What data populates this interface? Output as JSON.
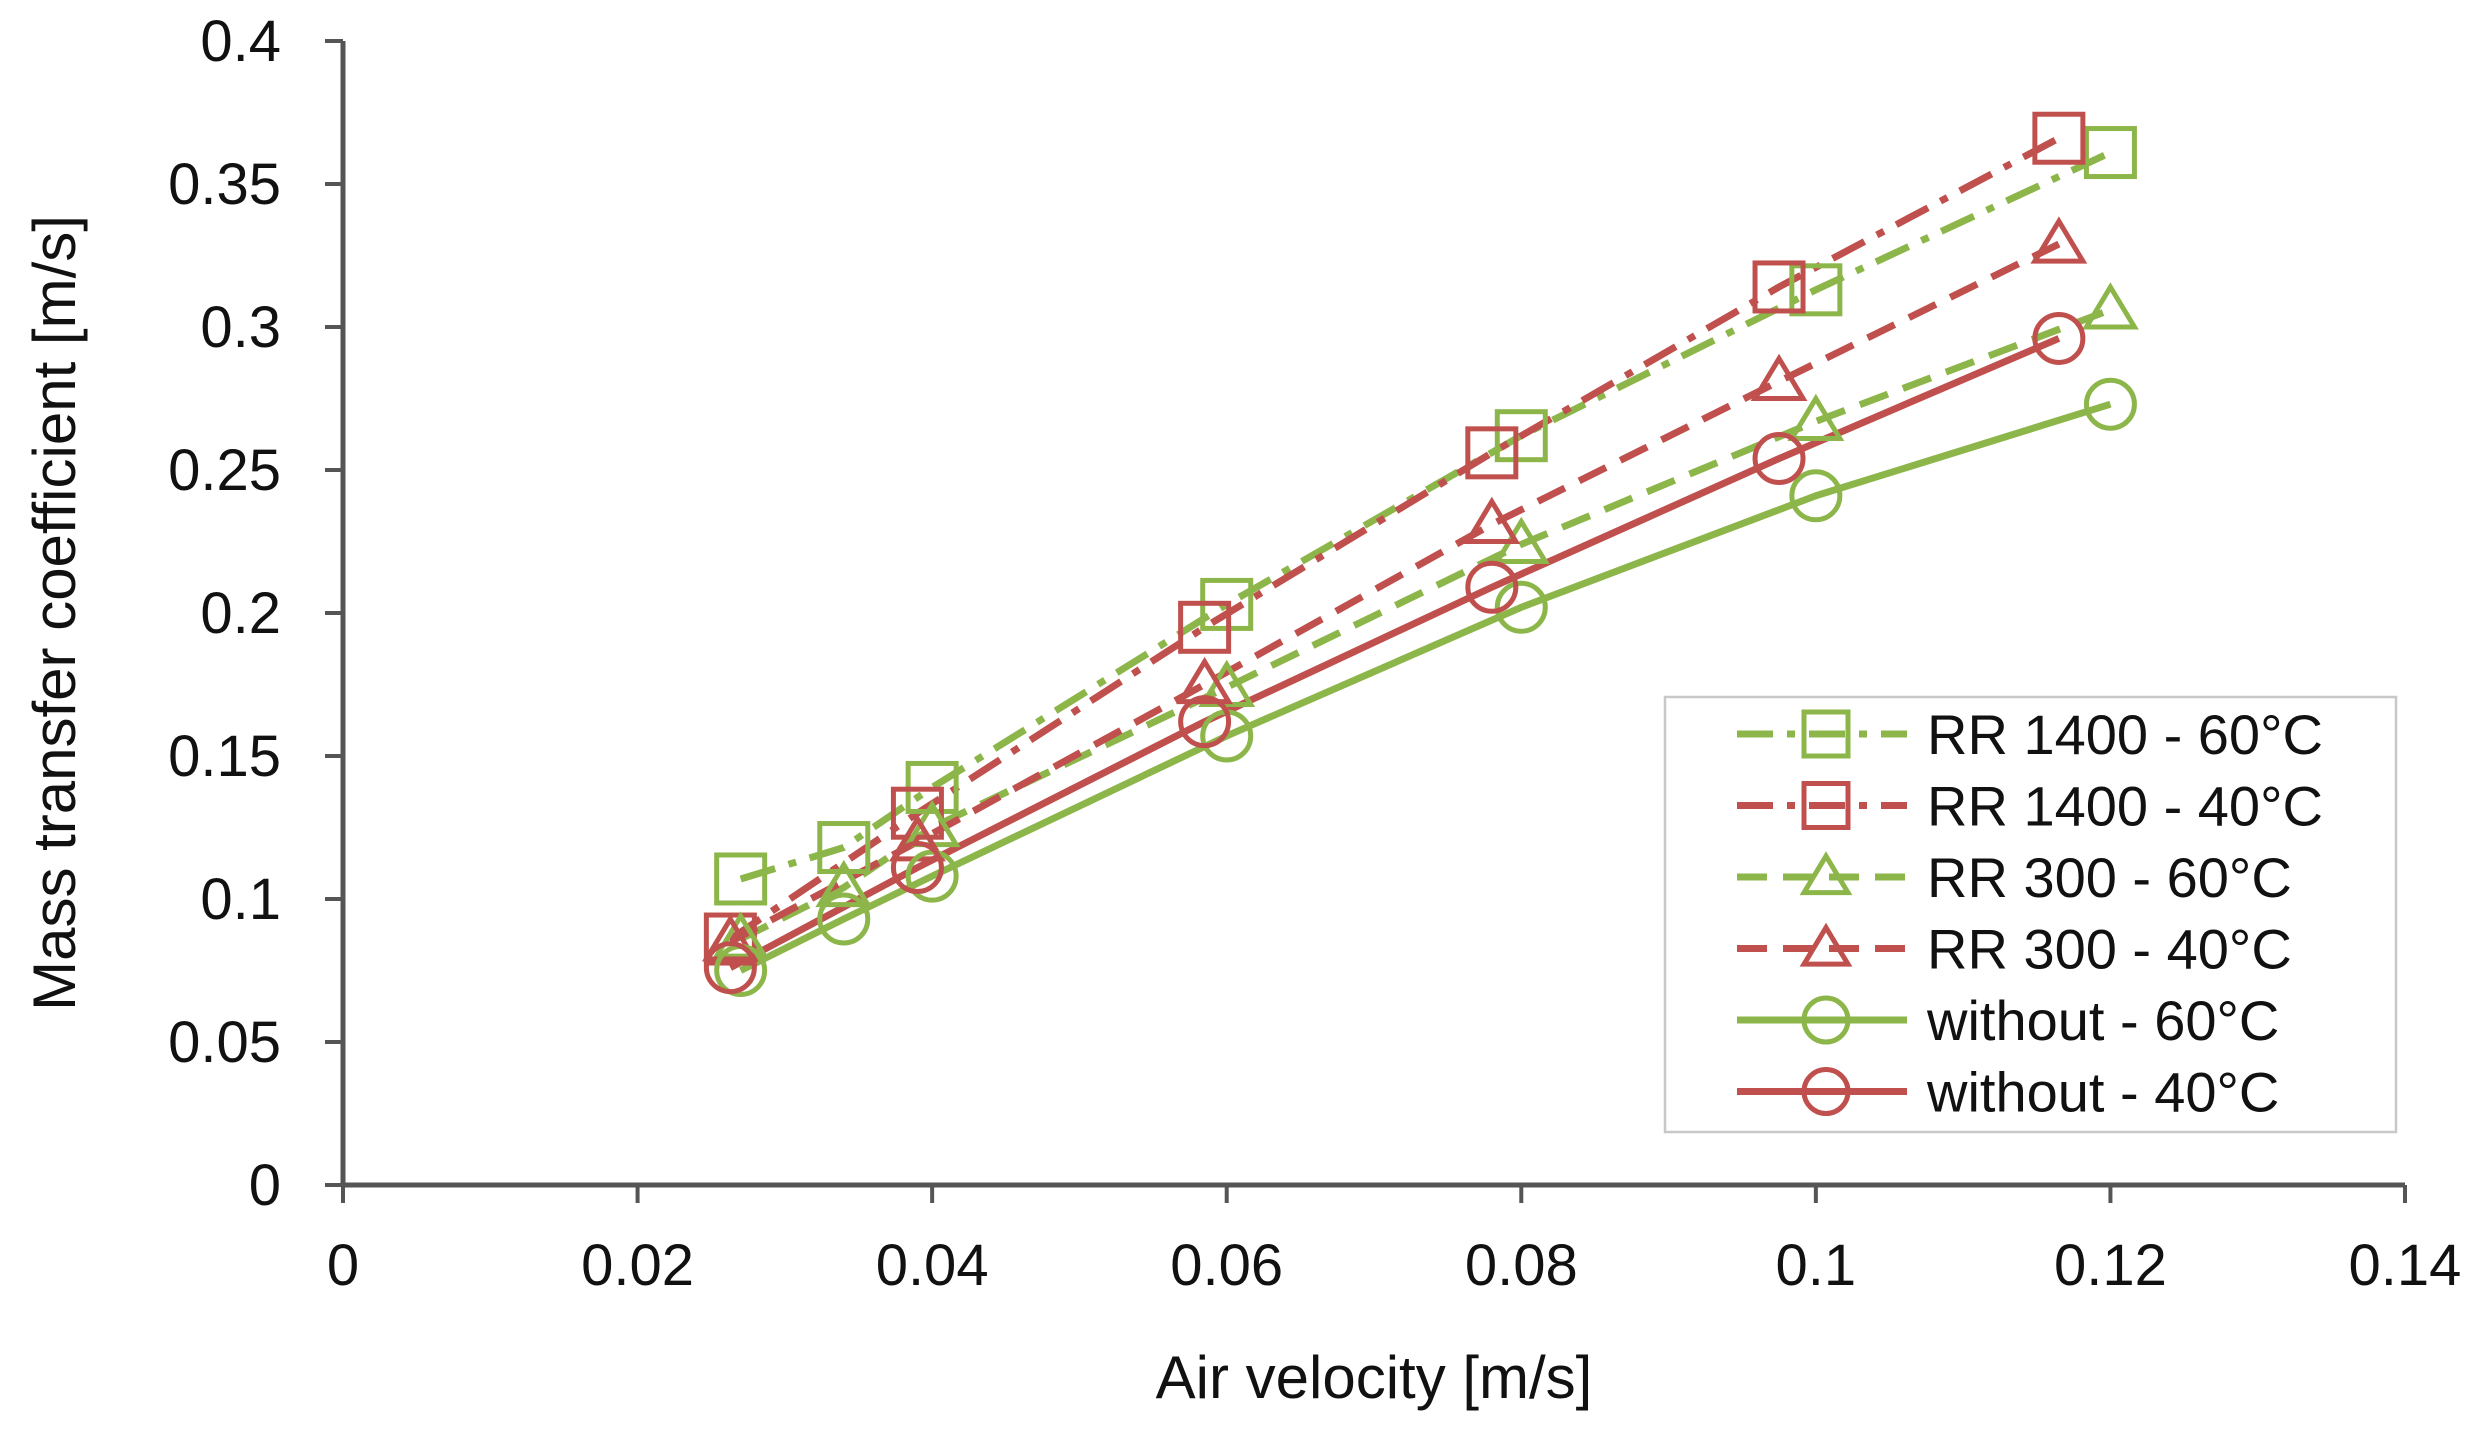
{
  "chart_data": {
    "type": "line",
    "title": "",
    "xlabel": "Air velocity [m/s]",
    "ylabel": "Mass transfer coefficient [m/s]",
    "xlim": [
      0,
      0.14
    ],
    "ylim": [
      0,
      0.4
    ],
    "x_ticks": [
      0,
      0.02,
      0.04,
      0.06,
      0.08,
      0.1,
      0.12,
      0.14
    ],
    "y_ticks": [
      0,
      0.05,
      0.1,
      0.15,
      0.2,
      0.25,
      0.3,
      0.35,
      0.4
    ],
    "x_tick_labels": [
      "0",
      "0.02",
      "0.04",
      "0.06",
      "0.08",
      "0.1",
      "0.12",
      "0.14"
    ],
    "y_tick_labels": [
      "0",
      "0.05",
      "0.1",
      "0.15",
      "0.2",
      "0.25",
      "0.3",
      "0.35",
      "0.4"
    ],
    "grid": false,
    "legend_position": "right",
    "series": [
      {
        "name": "RR 1400 - 60°C",
        "color": "#8db64a",
        "marker": "square",
        "dash": "dashdot",
        "x": [
          0.027,
          0.034,
          0.04,
          0.06,
          0.08,
          0.1,
          0.12
        ],
        "y": [
          0.107,
          0.118,
          0.139,
          0.203,
          0.262,
          0.313,
          0.361
        ]
      },
      {
        "name": "RR 1400 - 40°C",
        "color": "#c0504d",
        "marker": "square",
        "dash": "dashdot",
        "x": [
          0.0263,
          0.039,
          0.0585,
          0.078,
          0.0975,
          0.1165
        ],
        "y": [
          0.086,
          0.13,
          0.195,
          0.256,
          0.314,
          0.366
        ]
      },
      {
        "name": "RR 300 - 60°C",
        "color": "#8db64a",
        "marker": "triangle",
        "dash": "dashed",
        "x": [
          0.027,
          0.034,
          0.04,
          0.06,
          0.08,
          0.1,
          0.12
        ],
        "y": [
          0.086,
          0.104,
          0.125,
          0.174,
          0.224,
          0.267,
          0.306
        ]
      },
      {
        "name": "RR 300 - 40°C",
        "color": "#c0504d",
        "marker": "triangle",
        "dash": "dashed",
        "x": [
          0.0263,
          0.039,
          0.0585,
          0.078,
          0.0975,
          0.1165
        ],
        "y": [
          0.085,
          0.12,
          0.175,
          0.231,
          0.281,
          0.329
        ]
      },
      {
        "name": "without - 60°C",
        "color": "#8db64a",
        "marker": "circle",
        "dash": "solid",
        "x": [
          0.027,
          0.034,
          0.04,
          0.06,
          0.08,
          0.1,
          0.12
        ],
        "y": [
          0.075,
          0.093,
          0.108,
          0.157,
          0.202,
          0.241,
          0.273
        ]
      },
      {
        "name": "without - 40°C",
        "color": "#c0504d",
        "marker": "circle",
        "dash": "solid",
        "x": [
          0.0263,
          0.039,
          0.0585,
          0.078,
          0.0975,
          0.1165
        ],
        "y": [
          0.076,
          0.111,
          0.162,
          0.209,
          0.254,
          0.296
        ]
      }
    ]
  }
}
